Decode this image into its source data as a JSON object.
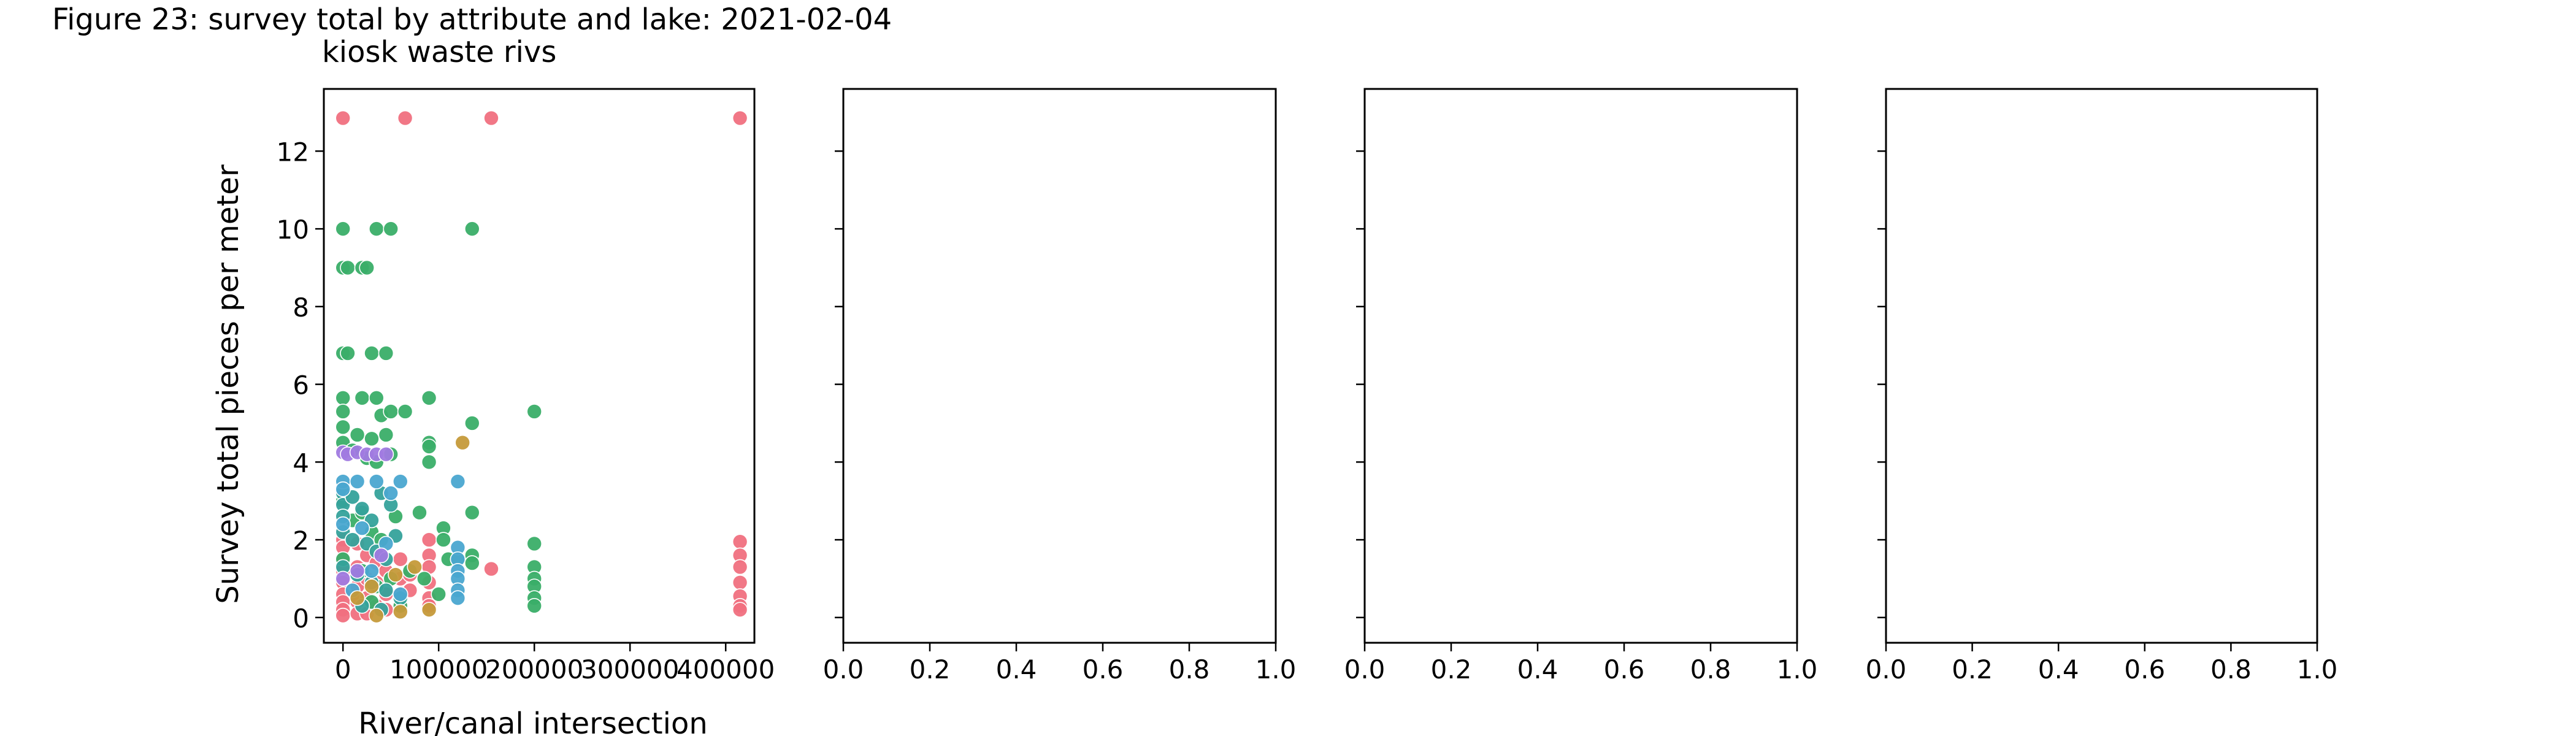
{
  "figure": {
    "title": "Figure 23: survey total by attribute and lake: 2021-02-04",
    "subtitle": "kiosk waste rivs"
  },
  "colors": {
    "red": "#f07080",
    "green": "#3aae68",
    "teal": "#35a29b",
    "blue": "#4aa6d0",
    "purple": "#a07ae0",
    "olive": "#c59a3a"
  },
  "chart_data": [
    {
      "type": "scatter",
      "xlabel": "River/canal intersection",
      "ylabel": "Survey total pieces per meter",
      "xlim": [
        -20000,
        430000
      ],
      "ylim": [
        -0.65,
        13.6
      ],
      "xticks": [
        0,
        100000,
        200000,
        300000,
        400000
      ],
      "xtick_labels": [
        "0",
        "100000",
        "200000",
        "300000",
        "400000"
      ],
      "yticks": [
        0,
        2,
        4,
        6,
        8,
        10,
        12
      ],
      "ytick_labels": [
        "0",
        "2",
        "4",
        "6",
        "8",
        "10",
        "12"
      ],
      "grid": false,
      "series": [
        {
          "color": "red",
          "points": [
            [
              0,
              12.85
            ],
            [
              65000,
              12.85
            ],
            [
              155000,
              12.85
            ],
            [
              415000,
              12.85
            ],
            [
              0,
              2.0
            ],
            [
              0,
              1.8
            ],
            [
              0,
              1.5
            ],
            [
              0,
              1.2
            ],
            [
              0,
              0.9
            ],
            [
              0,
              0.6
            ],
            [
              0,
              0.4
            ],
            [
              0,
              0.2
            ],
            [
              0,
              0.05
            ],
            [
              15000,
              1.9
            ],
            [
              15000,
              1.3
            ],
            [
              15000,
              0.8
            ],
            [
              15000,
              0.4
            ],
            [
              15000,
              0.1
            ],
            [
              25000,
              1.6
            ],
            [
              25000,
              1.0
            ],
            [
              25000,
              0.5
            ],
            [
              25000,
              0.1
            ],
            [
              35000,
              1.4
            ],
            [
              35000,
              0.9
            ],
            [
              35000,
              0.3
            ],
            [
              45000,
              1.2
            ],
            [
              45000,
              0.6
            ],
            [
              45000,
              0.2
            ],
            [
              60000,
              1.5
            ],
            [
              60000,
              1.0
            ],
            [
              60000,
              0.6
            ],
            [
              60000,
              0.3
            ],
            [
              70000,
              1.1
            ],
            [
              70000,
              0.7
            ],
            [
              90000,
              2.0
            ],
            [
              90000,
              1.6
            ],
            [
              90000,
              1.3
            ],
            [
              90000,
              0.9
            ],
            [
              90000,
              0.5
            ],
            [
              90000,
              0.3
            ],
            [
              155000,
              1.25
            ],
            [
              415000,
              1.95
            ],
            [
              415000,
              1.6
            ],
            [
              415000,
              1.3
            ],
            [
              415000,
              0.9
            ],
            [
              415000,
              0.55
            ],
            [
              415000,
              0.3
            ],
            [
              415000,
              0.2
            ]
          ]
        },
        {
          "color": "green",
          "points": [
            [
              0,
              10.0
            ],
            [
              35000,
              10.0
            ],
            [
              50000,
              10.0
            ],
            [
              135000,
              10.0
            ],
            [
              0,
              9.0
            ],
            [
              5000,
              9.0
            ],
            [
              20000,
              9.0
            ],
            [
              25000,
              9.0
            ],
            [
              0,
              6.8
            ],
            [
              5000,
              6.8
            ],
            [
              30000,
              6.8
            ],
            [
              45000,
              6.8
            ],
            [
              0,
              5.65
            ],
            [
              20000,
              5.65
            ],
            [
              35000,
              5.65
            ],
            [
              90000,
              5.65
            ],
            [
              0,
              5.3
            ],
            [
              40000,
              5.2
            ],
            [
              50000,
              5.3
            ],
            [
              65000,
              5.3
            ],
            [
              135000,
              5.0
            ],
            [
              200000,
              5.3
            ],
            [
              0,
              4.9
            ],
            [
              15000,
              4.7
            ],
            [
              30000,
              4.6
            ],
            [
              45000,
              4.7
            ],
            [
              90000,
              4.5
            ],
            [
              90000,
              4.4
            ],
            [
              0,
              4.5
            ],
            [
              10000,
              4.3
            ],
            [
              25000,
              4.1
            ],
            [
              35000,
              4.0
            ],
            [
              50000,
              4.2
            ],
            [
              90000,
              4.0
            ],
            [
              0,
              3.0
            ],
            [
              10000,
              2.5
            ],
            [
              20000,
              2.7
            ],
            [
              30000,
              2.2
            ],
            [
              40000,
              2.0
            ],
            [
              55000,
              2.6
            ],
            [
              80000,
              2.7
            ],
            [
              105000,
              2.3
            ],
            [
              105000,
              2.0
            ],
            [
              135000,
              2.7
            ],
            [
              0,
              1.5
            ],
            [
              20000,
              1.2
            ],
            [
              35000,
              0.8
            ],
            [
              50000,
              1.0
            ],
            [
              70000,
              1.2
            ],
            [
              85000,
              1.0
            ],
            [
              110000,
              1.5
            ],
            [
              135000,
              1.6
            ],
            [
              135000,
              1.4
            ],
            [
              200000,
              1.9
            ],
            [
              200000,
              1.3
            ],
            [
              200000,
              1.0
            ],
            [
              200000,
              0.8
            ],
            [
              200000,
              0.5
            ],
            [
              200000,
              0.3
            ],
            [
              30000,
              0.4
            ],
            [
              60000,
              0.3
            ],
            [
              100000,
              0.6
            ],
            [
              120000,
              1.5
            ]
          ]
        },
        {
          "color": "teal",
          "points": [
            [
              0,
              3.2
            ],
            [
              0,
              2.9
            ],
            [
              0,
              2.6
            ],
            [
              10000,
              3.1
            ],
            [
              20000,
              2.8
            ],
            [
              30000,
              2.5
            ],
            [
              40000,
              3.2
            ],
            [
              50000,
              2.9
            ],
            [
              0,
              2.2
            ],
            [
              10000,
              2.0
            ],
            [
              25000,
              1.9
            ],
            [
              35000,
              1.7
            ],
            [
              45000,
              1.5
            ],
            [
              55000,
              2.1
            ],
            [
              0,
              1.3
            ],
            [
              15000,
              1.1
            ],
            [
              30000,
              0.9
            ],
            [
              45000,
              0.7
            ],
            [
              60000,
              0.5
            ],
            [
              20000,
              0.3
            ],
            [
              40000,
              0.2
            ]
          ]
        },
        {
          "color": "blue",
          "points": [
            [
              0,
              3.5
            ],
            [
              0,
              3.3
            ],
            [
              15000,
              3.5
            ],
            [
              35000,
              3.5
            ],
            [
              50000,
              3.2
            ],
            [
              60000,
              3.5
            ],
            [
              120000,
              3.5
            ],
            [
              0,
              2.4
            ],
            [
              20000,
              2.3
            ],
            [
              45000,
              1.9
            ],
            [
              120000,
              1.8
            ],
            [
              120000,
              1.5
            ],
            [
              120000,
              1.2
            ],
            [
              120000,
              1.0
            ],
            [
              120000,
              0.7
            ],
            [
              120000,
              0.5
            ],
            [
              60000,
              0.6
            ],
            [
              10000,
              0.7
            ],
            [
              30000,
              1.2
            ]
          ]
        },
        {
          "color": "purple",
          "points": [
            [
              0,
              4.25
            ],
            [
              5000,
              4.2
            ],
            [
              15000,
              4.25
            ],
            [
              25000,
              4.2
            ],
            [
              35000,
              4.2
            ],
            [
              45000,
              4.2
            ],
            [
              0,
              1.0
            ],
            [
              15000,
              1.2
            ],
            [
              40000,
              1.6
            ]
          ]
        },
        {
          "color": "olive",
          "points": [
            [
              125000,
              4.5
            ],
            [
              15000,
              0.5
            ],
            [
              30000,
              0.8
            ],
            [
              55000,
              1.1
            ],
            [
              75000,
              1.3
            ],
            [
              90000,
              0.2
            ],
            [
              35000,
              0.05
            ],
            [
              60000,
              0.15
            ]
          ]
        }
      ]
    },
    {
      "type": "scatter",
      "xlim": [
        0,
        1
      ],
      "xticks": [
        0,
        0.2,
        0.4,
        0.6,
        0.8,
        1
      ],
      "xtick_labels": [
        "0.0",
        "0.2",
        "0.4",
        "0.6",
        "0.8",
        "1.0"
      ],
      "yticks": [
        0,
        2,
        4,
        6,
        8,
        10,
        12
      ],
      "sharey": true,
      "series": []
    },
    {
      "type": "scatter",
      "xlim": [
        0,
        1
      ],
      "xticks": [
        0,
        0.2,
        0.4,
        0.6,
        0.8,
        1
      ],
      "xtick_labels": [
        "0.0",
        "0.2",
        "0.4",
        "0.6",
        "0.8",
        "1.0"
      ],
      "yticks": [
        0,
        2,
        4,
        6,
        8,
        10,
        12
      ],
      "sharey": true,
      "series": []
    },
    {
      "type": "scatter",
      "xlim": [
        0,
        1
      ],
      "xticks": [
        0,
        0.2,
        0.4,
        0.6,
        0.8,
        1
      ],
      "xtick_labels": [
        "0.0",
        "0.2",
        "0.4",
        "0.6",
        "0.8",
        "1.0"
      ],
      "yticks": [
        0,
        2,
        4,
        6,
        8,
        10,
        12
      ],
      "sharey": true,
      "series": []
    }
  ]
}
